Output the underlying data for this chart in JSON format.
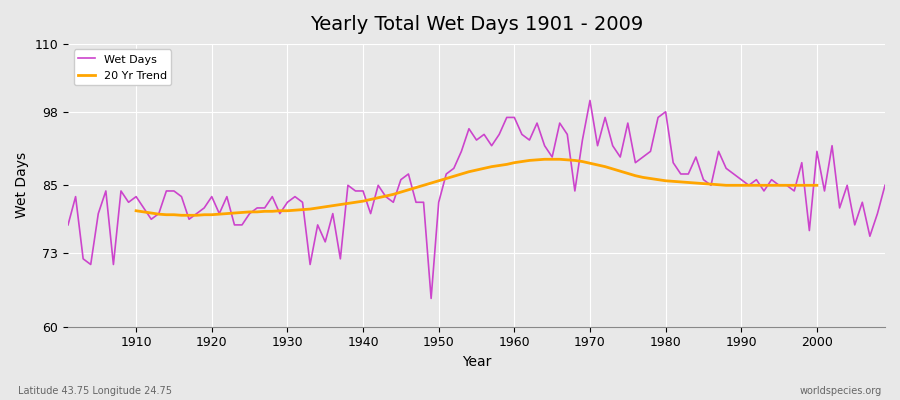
{
  "title": "Yearly Total Wet Days 1901 - 2009",
  "xlabel": "Year",
  "ylabel": "Wet Days",
  "bottom_left_label": "Latitude 43.75 Longitude 24.75",
  "bottom_right_label": "worldspecies.org",
  "ylim": [
    60,
    110
  ],
  "yticks": [
    60,
    73,
    85,
    98,
    110
  ],
  "xlim": [
    1901,
    2009
  ],
  "xticks": [
    1910,
    1920,
    1930,
    1940,
    1950,
    1960,
    1970,
    1980,
    1990,
    2000
  ],
  "wet_days_color": "#cc44cc",
  "trend_color": "#ffa500",
  "background_color": "#e8e8e8",
  "years": [
    1901,
    1902,
    1903,
    1904,
    1905,
    1906,
    1907,
    1908,
    1909,
    1910,
    1911,
    1912,
    1913,
    1914,
    1915,
    1916,
    1917,
    1918,
    1919,
    1920,
    1921,
    1922,
    1923,
    1924,
    1925,
    1926,
    1927,
    1928,
    1929,
    1930,
    1931,
    1932,
    1933,
    1934,
    1935,
    1936,
    1937,
    1938,
    1939,
    1940,
    1941,
    1942,
    1943,
    1944,
    1945,
    1946,
    1947,
    1948,
    1949,
    1950,
    1951,
    1952,
    1953,
    1954,
    1955,
    1956,
    1957,
    1958,
    1959,
    1960,
    1961,
    1962,
    1963,
    1964,
    1965,
    1966,
    1967,
    1968,
    1969,
    1970,
    1971,
    1972,
    1973,
    1974,
    1975,
    1976,
    1977,
    1978,
    1979,
    1980,
    1981,
    1982,
    1983,
    1984,
    1985,
    1986,
    1987,
    1988,
    1989,
    1990,
    1991,
    1992,
    1993,
    1994,
    1995,
    1996,
    1997,
    1998,
    1999,
    2000,
    2001,
    2002,
    2003,
    2004,
    2005,
    2006,
    2007,
    2008,
    2009
  ],
  "wet_days": [
    78,
    83,
    72,
    71,
    80,
    84,
    71,
    84,
    82,
    83,
    81,
    79,
    80,
    84,
    84,
    83,
    79,
    80,
    81,
    83,
    80,
    83,
    78,
    78,
    80,
    81,
    81,
    83,
    80,
    82,
    83,
    82,
    71,
    78,
    75,
    80,
    72,
    85,
    84,
    84,
    80,
    85,
    83,
    82,
    86,
    87,
    82,
    82,
    65,
    82,
    87,
    88,
    91,
    95,
    93,
    94,
    92,
    94,
    97,
    97,
    94,
    93,
    96,
    92,
    90,
    96,
    94,
    84,
    93,
    100,
    92,
    97,
    92,
    90,
    96,
    89,
    90,
    91,
    97,
    98,
    89,
    87,
    87,
    90,
    86,
    85,
    91,
    88,
    87,
    86,
    85,
    86,
    84,
    86,
    85,
    85,
    84,
    89,
    77,
    91,
    84,
    92,
    81,
    85,
    78,
    82,
    76,
    80,
    85
  ],
  "trend_years": [
    1910,
    1911,
    1912,
    1913,
    1914,
    1915,
    1916,
    1917,
    1918,
    1919,
    1920,
    1921,
    1922,
    1923,
    1924,
    1925,
    1926,
    1927,
    1928,
    1929,
    1930,
    1931,
    1932,
    1933,
    1934,
    1935,
    1936,
    1937,
    1938,
    1939,
    1940,
    1941,
    1942,
    1943,
    1944,
    1945,
    1946,
    1947,
    1948,
    1949,
    1950,
    1951,
    1952,
    1953,
    1954,
    1955,
    1956,
    1957,
    1958,
    1959,
    1960,
    1961,
    1962,
    1963,
    1964,
    1965,
    1966,
    1967,
    1968,
    1969,
    1970,
    1971,
    1972,
    1973,
    1974,
    1975,
    1976,
    1977,
    1978,
    1979,
    1980,
    1981,
    1982,
    1983,
    1984,
    1985,
    1986,
    1987,
    1988,
    1989,
    1990,
    1991,
    1992,
    1993,
    1994,
    1995,
    1996,
    1997,
    1998,
    1999,
    2000
  ],
  "trend_values": [
    80.5,
    80.3,
    80.1,
    79.9,
    79.8,
    79.8,
    79.7,
    79.7,
    79.7,
    79.8,
    79.8,
    79.9,
    80.0,
    80.1,
    80.2,
    80.3,
    80.3,
    80.4,
    80.4,
    80.5,
    80.5,
    80.6,
    80.7,
    80.8,
    81.0,
    81.2,
    81.4,
    81.6,
    81.8,
    82.0,
    82.2,
    82.5,
    82.8,
    83.1,
    83.4,
    83.8,
    84.2,
    84.6,
    85.0,
    85.4,
    85.8,
    86.2,
    86.6,
    87.0,
    87.4,
    87.7,
    88.0,
    88.3,
    88.5,
    88.7,
    89.0,
    89.2,
    89.4,
    89.5,
    89.6,
    89.6,
    89.6,
    89.5,
    89.4,
    89.2,
    88.9,
    88.6,
    88.3,
    87.9,
    87.5,
    87.1,
    86.7,
    86.4,
    86.2,
    86.0,
    85.8,
    85.7,
    85.6,
    85.5,
    85.4,
    85.3,
    85.2,
    85.1,
    85.0,
    85.0,
    85.0,
    85.0,
    85.0,
    85.0,
    85.0,
    85.0,
    85.0,
    85.0,
    85.0,
    85.0,
    85.0
  ]
}
